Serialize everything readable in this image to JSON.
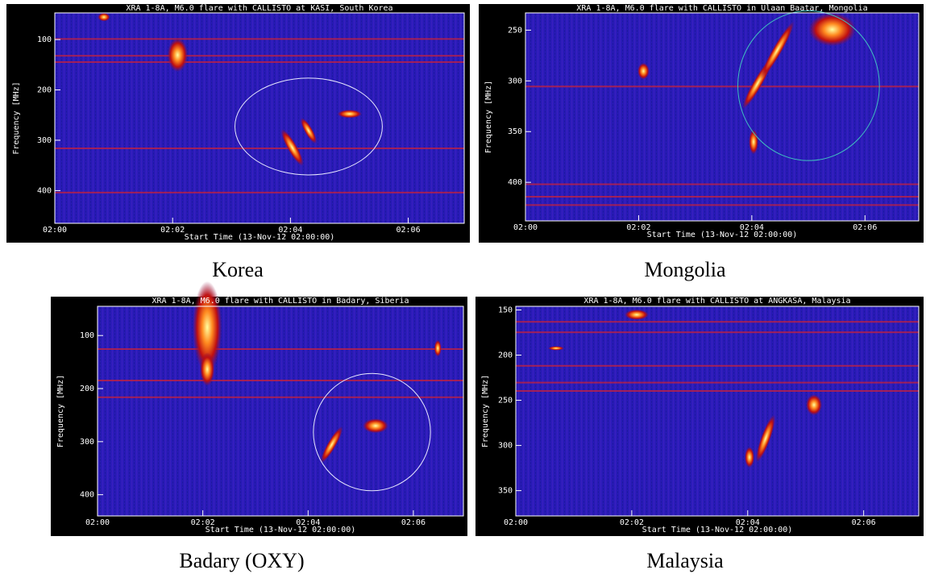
{
  "chart_data": [
    {
      "type": "spectrogram",
      "title": "XRA  1-8A, M6.0 flare with CALLISTO at KASI, South Korea",
      "xlabel": "Start Time (13-Nov-12 02:00:00)",
      "ylabel": "Frequency [MHz]",
      "caption": "Korea",
      "xlim": [
        0,
        6.95
      ],
      "xticks": [
        {
          "value": 0,
          "label": "02:00"
        },
        {
          "value": 2,
          "label": "02:02"
        },
        {
          "value": 4,
          "label": "02:04"
        },
        {
          "value": 6,
          "label": "02:06"
        }
      ],
      "ylim": [
        47,
        465
      ],
      "yticks": [
        100,
        200,
        300,
        400
      ]
    },
    {
      "type": "spectrogram",
      "title": "XRA  1-8A, M6.0 flare with CALLISTO in Ulaan Baatar, Mongolia",
      "xlabel": "Start Time (13-Nov-12 02:00:00)",
      "ylabel": "Frequency [MHz]",
      "caption": "Mongolia",
      "xlim": [
        0,
        6.95
      ],
      "xticks": [
        {
          "value": 0,
          "label": "02:00"
        },
        {
          "value": 2,
          "label": "02:02"
        },
        {
          "value": 4,
          "label": "02:04"
        },
        {
          "value": 6,
          "label": "02:06"
        }
      ],
      "ylim": [
        233,
        438
      ],
      "yticks": [
        250,
        300,
        350,
        400
      ]
    },
    {
      "type": "spectrogram",
      "title": "XRA  1-8A, M6.0 flare with CALLISTO in Badary, Siberia",
      "xlabel": "Start Time (13-Nov-12 02:00:00)",
      "ylabel": "Frequency [MHz]",
      "caption": "Badary (OXY)",
      "xlim": [
        0,
        6.95
      ],
      "xticks": [
        {
          "value": 0,
          "label": "02:00"
        },
        {
          "value": 2,
          "label": "02:02"
        },
        {
          "value": 4,
          "label": "02:04"
        },
        {
          "value": 6,
          "label": "02:06"
        }
      ],
      "ylim": [
        45,
        440
      ],
      "yticks": [
        100,
        200,
        300,
        400
      ]
    },
    {
      "type": "spectrogram",
      "title": "XRA  1-8A, M6.0 flare with CALLISTO at ANGKASA, Malaysia",
      "xlabel": "Start Time (13-Nov-12 02:00:00)",
      "ylabel": "Frequency [MHz]",
      "caption": "Malaysia",
      "xlim": [
        0,
        6.95
      ],
      "xticks": [
        {
          "value": 0,
          "label": "02:00"
        },
        {
          "value": 2,
          "label": "02:02"
        },
        {
          "value": 4,
          "label": "02:04"
        },
        {
          "value": 6,
          "label": "02:06"
        }
      ],
      "ylim": [
        146,
        378
      ],
      "yticks": [
        150,
        200,
        250,
        300,
        350
      ]
    }
  ]
}
